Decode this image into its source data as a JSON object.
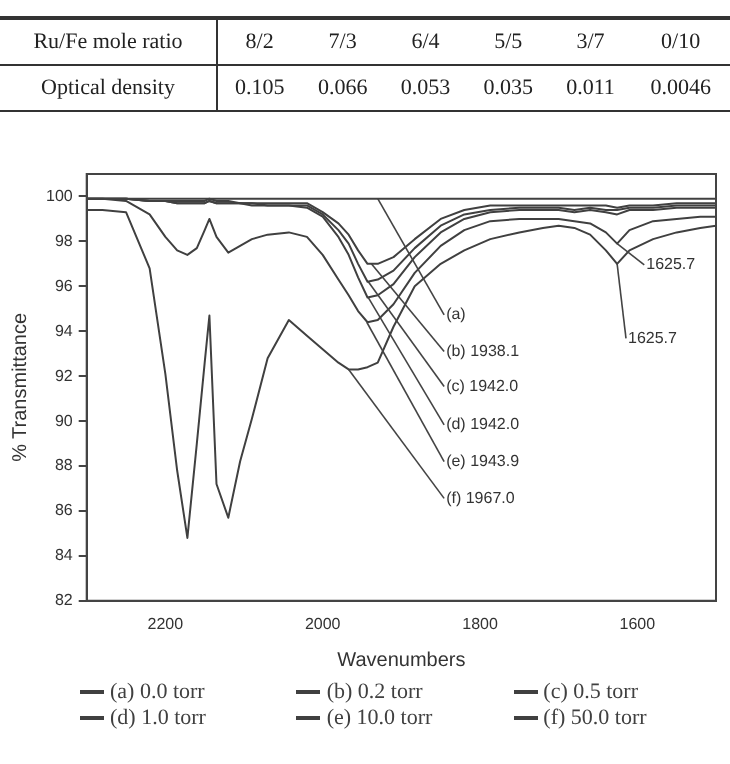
{
  "chart_data": {
    "type": "line",
    "xlabel": "Wavenumbers",
    "ylabel": "% Transmittance",
    "x": [
      2300,
      2280,
      2250,
      2220,
      2200,
      2185,
      2172,
      2160,
      2150,
      2144,
      2135,
      2120,
      2105,
      2090,
      2070,
      2043,
      2020,
      2000,
      1980,
      1967,
      1955,
      1943,
      1930,
      1910,
      1883,
      1850,
      1820,
      1787,
      1750,
      1720,
      1700,
      1680,
      1660,
      1640,
      1625.7,
      1610,
      1580,
      1550,
      1520,
      1500
    ],
    "series": [
      {
        "name": "(a) 0.0 torr",
        "color": "#404040",
        "values": [
          99.9,
          99.9,
          99.9,
          99.9,
          99.9,
          99.9,
          99.9,
          99.9,
          99.9,
          99.9,
          99.9,
          99.9,
          99.9,
          99.9,
          99.9,
          99.9,
          99.9,
          99.9,
          99.9,
          99.9,
          99.9,
          99.9,
          99.9,
          99.9,
          99.9,
          99.9,
          99.9,
          99.9,
          99.9,
          99.9,
          99.9,
          99.9,
          99.9,
          99.9,
          99.9,
          99.9,
          99.9,
          99.9,
          99.9,
          99.9
        ]
      },
      {
        "name": "(b) 0.2 torr",
        "color": "#404040",
        "values": [
          99.9,
          99.9,
          99.9,
          99.8,
          99.8,
          99.8,
          99.8,
          99.8,
          99.8,
          99.9,
          99.8,
          99.8,
          99.7,
          99.7,
          99.7,
          99.7,
          99.7,
          99.3,
          98.8,
          98.3,
          97.6,
          97.0,
          97.0,
          97.3,
          98.1,
          99.0,
          99.4,
          99.6,
          99.6,
          99.6,
          99.6,
          99.6,
          99.6,
          99.6,
          99.5,
          99.6,
          99.6,
          99.7,
          99.7,
          99.7
        ]
      },
      {
        "name": "(c) 0.5 torr",
        "color": "#404040",
        "values": [
          99.9,
          99.9,
          99.9,
          99.8,
          99.8,
          99.7,
          99.7,
          99.7,
          99.7,
          99.8,
          99.7,
          99.7,
          99.7,
          99.7,
          99.6,
          99.6,
          99.6,
          99.2,
          98.5,
          97.9,
          97.0,
          96.2,
          96.3,
          96.7,
          97.7,
          98.7,
          99.2,
          99.4,
          99.5,
          99.5,
          99.5,
          99.4,
          99.5,
          99.4,
          99.4,
          99.5,
          99.5,
          99.6,
          99.6,
          99.6
        ]
      },
      {
        "name": "(d) 1.0 torr",
        "color": "#404040",
        "values": [
          99.9,
          99.9,
          99.9,
          99.8,
          99.8,
          99.7,
          99.7,
          99.7,
          99.7,
          99.8,
          99.7,
          99.7,
          99.7,
          99.6,
          99.6,
          99.6,
          99.5,
          99.1,
          98.2,
          97.4,
          96.4,
          95.5,
          95.6,
          96.1,
          97.3,
          98.4,
          99.0,
          99.3,
          99.4,
          99.4,
          99.4,
          99.3,
          99.4,
          99.3,
          99.2,
          99.4,
          99.4,
          99.5,
          99.5,
          99.5
        ]
      },
      {
        "name": "(e) 10.0 torr",
        "color": "#404040",
        "values": [
          99.9,
          99.9,
          99.8,
          99.2,
          98.2,
          97.6,
          97.4,
          97.7,
          98.5,
          99.0,
          98.2,
          97.5,
          97.8,
          98.1,
          98.3,
          98.4,
          98.2,
          97.4,
          96.3,
          95.6,
          94.9,
          94.4,
          94.5,
          95.2,
          96.6,
          97.8,
          98.5,
          98.9,
          99.0,
          99.0,
          99.0,
          98.9,
          98.8,
          98.4,
          97.9,
          98.5,
          98.9,
          99.0,
          99.1,
          99.1
        ]
      },
      {
        "name": "(f) 50.0 torr",
        "color": "#404040",
        "values": [
          99.4,
          99.4,
          99.3,
          96.8,
          92.1,
          87.8,
          84.8,
          89.0,
          92.6,
          94.7,
          87.2,
          85.7,
          88.2,
          90.1,
          92.8,
          94.5,
          93.8,
          93.2,
          92.6,
          92.3,
          92.3,
          92.4,
          92.6,
          94.2,
          96.0,
          97.0,
          97.6,
          98.1,
          98.4,
          98.6,
          98.7,
          98.6,
          98.3,
          97.6,
          97.0,
          97.6,
          98.1,
          98.4,
          98.6,
          98.7
        ]
      }
    ],
    "xlim": [
      2300,
      1500
    ],
    "xticks": [
      2200,
      2000,
      1800,
      1600
    ],
    "ylim": [
      82,
      101
    ],
    "yticks": [
      82,
      84,
      86,
      88,
      90,
      92,
      94,
      96,
      98,
      100
    ],
    "grid": false,
    "legend": "bottom",
    "marker": "none",
    "line_style": "solid",
    "annotations": [
      "Ru/Fe mole ratio",
      "8/2",
      "7/3",
      "6/4",
      "5/5",
      "3/7",
      "0/10",
      "Optical density",
      "0.105",
      "0.066",
      "0.053",
      "0.035",
      "0.011",
      "0.0046",
      {
        "text": "(a)",
        "x": 1930,
        "y": 99.9
      },
      {
        "text": "(b) 1938.1",
        "x": 1938.1,
        "y": 97.0
      },
      {
        "text": "(c) 1942.0",
        "x": 1942.0,
        "y": 96.2
      },
      {
        "text": "(d) 1942.0",
        "x": 1942.0,
        "y": 95.5
      },
      {
        "text": "(e) 1943.9",
        "x": 1943.9,
        "y": 94.4
      },
      {
        "text": "(f) 1967.0",
        "x": 1967.0,
        "y": 92.3
      },
      {
        "text": "1625.7",
        "x": 1625.7,
        "y": 97.9
      },
      {
        "text": "1625.7",
        "x": 1625.7,
        "y": 97.0
      }
    ]
  }
}
